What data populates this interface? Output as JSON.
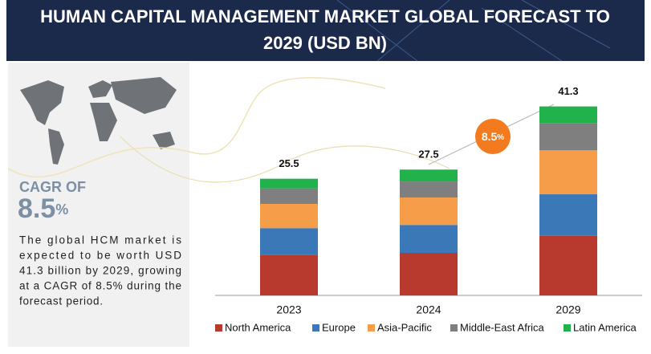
{
  "header": {
    "title_line1": "HUMAN CAPITAL MANAGEMENT MARKET GLOBAL FORECAST TO",
    "title_line2": "2029 (USD BN)"
  },
  "summary": {
    "cagr_label": "CAGR OF",
    "cagr": {
      "value": "8.5",
      "unit": "%"
    },
    "text_lines": [
      "The global HCM market is",
      "expected to be worth USD",
      "41.3 billion by 2029, growing",
      "at a CAGR of 8.5% during the",
      "forecast period."
    ]
  },
  "chart_data": {
    "type": "stacked_bar",
    "categories": [
      "2023",
      "2024",
      "2029"
    ],
    "totals": [
      25.5,
      27.5,
      41.3
    ],
    "series": [
      {
        "name": "North America",
        "color": "#b83a2f",
        "values": [
          8.9,
          9.3,
          13.0
        ]
      },
      {
        "name": "Europe",
        "color": "#3b78b8",
        "values": [
          5.8,
          6.1,
          9.1
        ]
      },
      {
        "name": "Asia-Pacific",
        "color": "#f59d48",
        "values": [
          5.3,
          6.0,
          9.6
        ]
      },
      {
        "name": "Middle-East Africa",
        "color": "#7f7f7f",
        "values": [
          3.4,
          3.5,
          5.9
        ]
      },
      {
        "name": "Latin America",
        "color": "#22b24c",
        "values": [
          2.1,
          2.6,
          3.7
        ]
      }
    ]
  }
}
